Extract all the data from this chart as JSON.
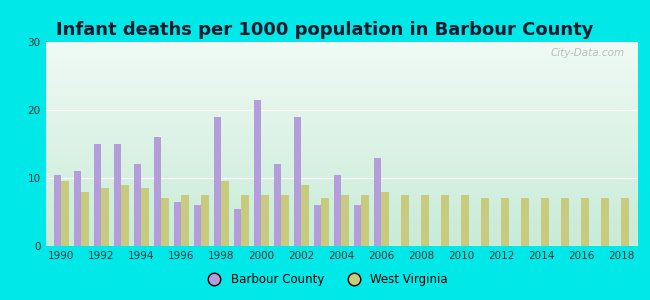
{
  "title": "Infant deaths per 1000 population in Barbour County",
  "years": [
    1990,
    1991,
    1992,
    1993,
    1994,
    1995,
    1996,
    1997,
    1998,
    1999,
    2000,
    2001,
    2002,
    2003,
    2004,
    2005,
    2006,
    2007,
    2008,
    2009,
    2010,
    2011,
    2012,
    2013,
    2014,
    2015,
    2016,
    2017,
    2018
  ],
  "barbour": [
    10.5,
    11.0,
    15.0,
    15.0,
    12.0,
    16.0,
    6.5,
    6.0,
    19.0,
    5.5,
    21.5,
    12.0,
    19.0,
    6.0,
    10.5,
    6.0,
    13.0,
    0.0,
    0.0,
    0.0,
    0.0,
    0.0,
    0.0,
    0.0,
    0.0,
    0.0,
    0.0,
    0.0,
    0.0
  ],
  "west_virginia": [
    9.5,
    8.0,
    8.5,
    9.0,
    8.5,
    7.0,
    7.5,
    7.5,
    9.5,
    7.5,
    7.5,
    7.5,
    9.0,
    7.0,
    7.5,
    7.5,
    8.0,
    7.5,
    7.5,
    7.5,
    7.5,
    7.0,
    7.0,
    7.0,
    7.0,
    7.0,
    7.0,
    7.0,
    7.0
  ],
  "barbour_color": "#b39ddb",
  "wv_color": "#c8ca7e",
  "bg_outer": "#00e8e8",
  "bg_plot": "#e8f5ee",
  "ylim": [
    0,
    30
  ],
  "yticks": [
    0,
    10,
    20,
    30
  ],
  "title_fontsize": 13,
  "bar_width": 0.38,
  "legend_barbour": "Barbour County",
  "legend_wv": "West Virginia",
  "watermark": "City-Data.com"
}
